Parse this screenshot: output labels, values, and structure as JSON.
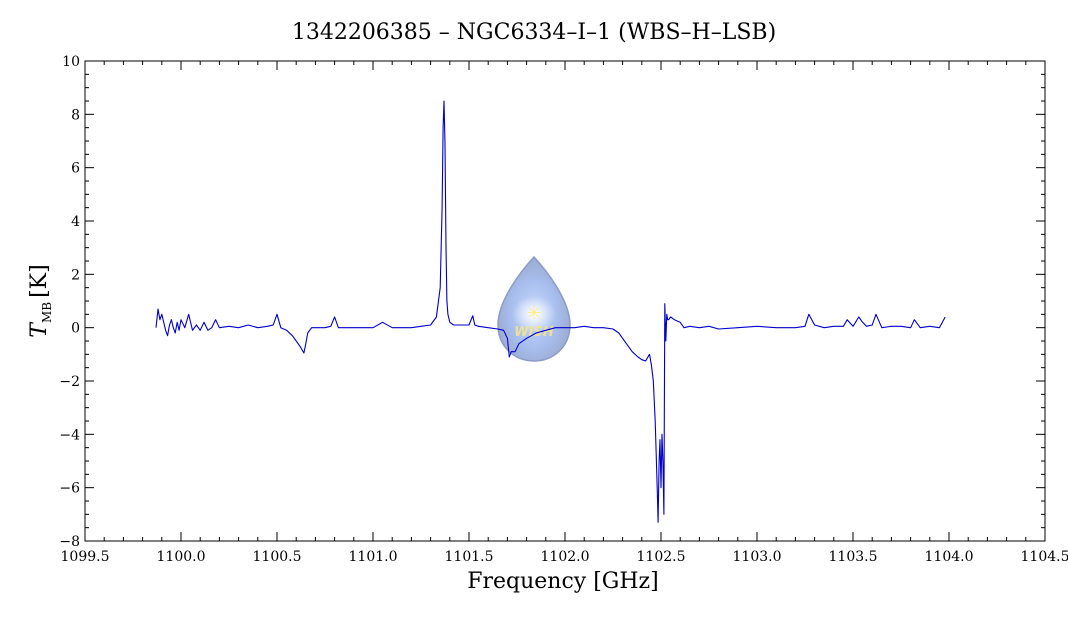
{
  "chart_data": {
    "type": "line",
    "title": "1342206385 – NGC6334–I–1 (WBS–H–LSB)",
    "xlabel": "Frequency [GHz]",
    "ylabel_symbol": "T",
    "ylabel_subscript": "MB",
    "ylabel_unit": "[K]",
    "xlim": [
      1099.5,
      1104.5
    ],
    "ylim": [
      -8,
      10
    ],
    "x_ticks": [
      "1099.5",
      "1100.0",
      "1100.5",
      "1101.0",
      "1101.5",
      "1102.0",
      "1102.5",
      "1103.0",
      "1103.5",
      "1104.0",
      "1104.5"
    ],
    "y_ticks": [
      "−8",
      "−6",
      "−4",
      "−2",
      "0",
      "2",
      "4",
      "6",
      "8",
      "10"
    ],
    "grid": false,
    "series": [
      {
        "color": "#0000cc",
        "x": [
          1099.87,
          1099.88,
          1099.89,
          1099.9,
          1099.91,
          1099.92,
          1099.93,
          1099.94,
          1099.95,
          1099.96,
          1099.97,
          1099.98,
          1099.99,
          1100.0,
          1100.02,
          1100.04,
          1100.06,
          1100.08,
          1100.1,
          1100.12,
          1100.14,
          1100.16,
          1100.18,
          1100.2,
          1100.25,
          1100.3,
          1100.35,
          1100.4,
          1100.45,
          1100.48,
          1100.5,
          1100.52,
          1100.55,
          1100.58,
          1100.6,
          1100.62,
          1100.64,
          1100.65,
          1100.66,
          1100.68,
          1100.7,
          1100.75,
          1100.78,
          1100.8,
          1100.82,
          1100.9,
          1101.0,
          1101.05,
          1101.1,
          1101.2,
          1101.25,
          1101.3,
          1101.33,
          1101.35,
          1101.36,
          1101.365,
          1101.37,
          1101.375,
          1101.38,
          1101.385,
          1101.39,
          1101.4,
          1101.42,
          1101.45,
          1101.5,
          1101.52,
          1101.53,
          1101.55,
          1101.6,
          1101.65,
          1101.68,
          1101.7,
          1101.71,
          1101.72,
          1101.74,
          1101.76,
          1101.8,
          1101.85,
          1101.9,
          1101.95,
          1102.0,
          1102.05,
          1102.1,
          1102.15,
          1102.2,
          1102.25,
          1102.28,
          1102.3,
          1102.32,
          1102.35,
          1102.38,
          1102.4,
          1102.42,
          1102.44,
          1102.45,
          1102.46,
          1102.47,
          1102.48,
          1102.485,
          1102.49,
          1102.495,
          1102.5,
          1102.505,
          1102.51,
          1102.515,
          1102.52,
          1102.525,
          1102.53,
          1102.535,
          1102.54,
          1102.55,
          1102.57,
          1102.6,
          1102.62,
          1102.65,
          1102.7,
          1102.75,
          1102.8,
          1102.9,
          1103.0,
          1103.1,
          1103.2,
          1103.25,
          1103.27,
          1103.3,
          1103.35,
          1103.4,
          1103.45,
          1103.47,
          1103.5,
          1103.53,
          1103.55,
          1103.57,
          1103.6,
          1103.62,
          1103.65,
          1103.7,
          1103.75,
          1103.8,
          1103.82,
          1103.85,
          1103.9,
          1103.95,
          1103.98
        ],
        "y": [
          0.0,
          0.7,
          0.3,
          0.5,
          0.2,
          -0.1,
          -0.3,
          0.1,
          0.3,
          0.0,
          -0.2,
          0.2,
          -0.1,
          0.3,
          0.0,
          0.5,
          -0.1,
          0.1,
          -0.1,
          0.2,
          -0.1,
          0.0,
          0.3,
          0.0,
          0.05,
          0.0,
          0.1,
          0.0,
          0.05,
          0.1,
          0.5,
          0.0,
          -0.1,
          -0.3,
          -0.5,
          -0.7,
          -0.95,
          -0.6,
          -0.2,
          0.0,
          0.0,
          0.0,
          0.05,
          0.4,
          0.0,
          0.0,
          0.0,
          0.2,
          0.0,
          0.0,
          0.05,
          0.1,
          0.4,
          1.5,
          4.5,
          7.5,
          8.5,
          6.9,
          3.0,
          1.0,
          0.5,
          0.2,
          0.1,
          0.1,
          0.1,
          0.45,
          0.1,
          0.05,
          0.0,
          -0.05,
          -0.1,
          -0.4,
          -1.1,
          -0.9,
          -0.9,
          -0.6,
          -0.4,
          -0.2,
          -0.1,
          0.0,
          0.0,
          0.0,
          0.05,
          0.0,
          0.0,
          -0.05,
          -0.2,
          -0.4,
          -0.6,
          -0.9,
          -1.1,
          -1.2,
          -1.25,
          -1.0,
          -1.4,
          -2.0,
          -3.5,
          -6.0,
          -7.3,
          -5.0,
          -4.2,
          -6.0,
          -4.0,
          -5.0,
          -7.0,
          0.9,
          -0.5,
          0.5,
          0.3,
          0.3,
          0.4,
          0.3,
          0.2,
          0.0,
          0.05,
          0.0,
          0.05,
          -0.05,
          0.0,
          0.05,
          0.0,
          0.0,
          0.05,
          0.5,
          0.1,
          0.0,
          0.05,
          0.05,
          0.3,
          0.05,
          0.4,
          0.2,
          0.05,
          0.1,
          0.5,
          0.0,
          0.05,
          0.05,
          0.0,
          0.3,
          0.0,
          0.05,
          0.0,
          0.4
        ]
      }
    ]
  },
  "watermark": {
    "label": "WISH"
  }
}
